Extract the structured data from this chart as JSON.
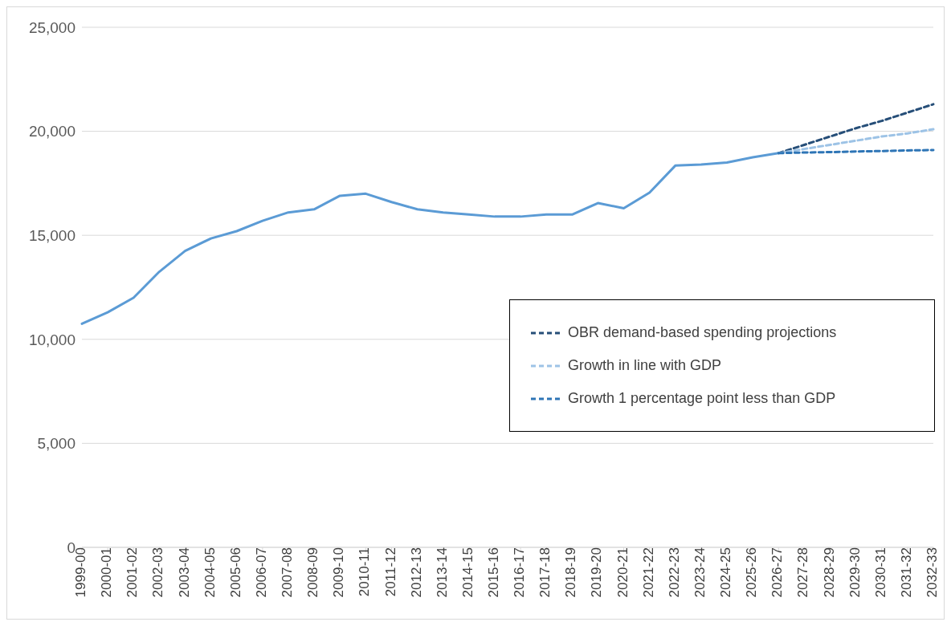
{
  "chart_data": {
    "type": "line",
    "categories": [
      "1999-00",
      "2000-01",
      "2001-02",
      "2002-03",
      "2003-04",
      "2004-05",
      "2005-06",
      "2006-07",
      "2007-08",
      "2008-09",
      "2009-10",
      "2010-11",
      "2011-12",
      "2012-13",
      "2013-14",
      "2014-15",
      "2015-16",
      "2016-17",
      "2017-18",
      "2018-19",
      "2019-20",
      "2020-21",
      "2021-22",
      "2022-23",
      "2023-24",
      "2024-25",
      "2025-26",
      "2026-27",
      "2027-28",
      "2028-29",
      "2029-30",
      "2030-31",
      "2031-32",
      "2032-33"
    ],
    "series": [
      {
        "color": "#5b9bd5",
        "line_style": "solid",
        "values": [
          10750,
          11300,
          12000,
          13250,
          14250,
          14850,
          15200,
          15700,
          16100,
          16250,
          16900,
          17000,
          16600,
          16250,
          16100,
          16000,
          15900,
          15900,
          16000,
          16000,
          16550,
          16300,
          17050,
          18350,
          18400,
          18500,
          18750,
          18950,
          null,
          null,
          null,
          null,
          null,
          null
        ]
      },
      {
        "name": "OBR demand-based spending projections",
        "color": "#264e78",
        "line_style": "dashed",
        "values": [
          null,
          null,
          null,
          null,
          null,
          null,
          null,
          null,
          null,
          null,
          null,
          null,
          null,
          null,
          null,
          null,
          null,
          null,
          null,
          null,
          null,
          null,
          null,
          null,
          null,
          null,
          null,
          18950,
          19350,
          19750,
          20150,
          20500,
          20900,
          21300
        ]
      },
      {
        "name": "Growth in line with GDP",
        "color": "#9dc3e6",
        "line_style": "dashed",
        "values": [
          null,
          null,
          null,
          null,
          null,
          null,
          null,
          null,
          null,
          null,
          null,
          null,
          null,
          null,
          null,
          null,
          null,
          null,
          null,
          null,
          null,
          null,
          null,
          null,
          null,
          null,
          null,
          18950,
          19150,
          19350,
          19550,
          19750,
          19900,
          20100
        ]
      },
      {
        "name": "Growth 1 percentage point less than GDP",
        "color": "#2e75b6",
        "line_style": "dashed",
        "values": [
          null,
          null,
          null,
          null,
          null,
          null,
          null,
          null,
          null,
          null,
          null,
          null,
          null,
          null,
          null,
          null,
          null,
          null,
          null,
          null,
          null,
          null,
          null,
          null,
          null,
          null,
          null,
          18950,
          18980,
          19000,
          19030,
          19050,
          19080,
          19100
        ]
      }
    ],
    "ylim": [
      0,
      25000
    ],
    "yticks": [
      0,
      {
        "value": 5000,
        "label": "5,000"
      },
      {
        "value": 10000,
        "label": "10,000"
      },
      {
        "value": 15000,
        "label": "15,000"
      },
      {
        "value": 20000,
        "label": "20,000"
      },
      {
        "value": 25000,
        "label": "25,000"
      }
    ],
    "grid": "y",
    "legend": "right",
    "marker": "none"
  }
}
